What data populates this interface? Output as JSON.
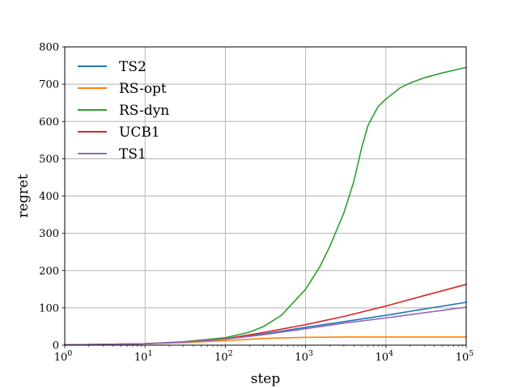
{
  "chart_data": {
    "type": "line",
    "title": "",
    "xlabel": "step",
    "ylabel": "regret",
    "xscale": "log",
    "xlim": [
      1,
      100000
    ],
    "ylim": [
      0,
      800
    ],
    "grid": true,
    "legend_position": "top-left",
    "x_ticks": [
      {
        "value": 1,
        "base": "10",
        "exp": "0"
      },
      {
        "value": 10,
        "base": "10",
        "exp": "1"
      },
      {
        "value": 100,
        "base": "10",
        "exp": "2"
      },
      {
        "value": 1000,
        "base": "10",
        "exp": "3"
      },
      {
        "value": 10000,
        "base": "10",
        "exp": "4"
      },
      {
        "value": 100000,
        "base": "10",
        "exp": "5"
      }
    ],
    "y_ticks": [
      {
        "value": 0,
        "label": "0"
      },
      {
        "value": 100,
        "label": "100"
      },
      {
        "value": 200,
        "label": "200"
      },
      {
        "value": 300,
        "label": "300"
      },
      {
        "value": 400,
        "label": "400"
      },
      {
        "value": 500,
        "label": "500"
      },
      {
        "value": 600,
        "label": "600"
      },
      {
        "value": 700,
        "label": "700"
      },
      {
        "value": 800,
        "label": "800"
      }
    ],
    "series": [
      {
        "name": "TS2",
        "color": "#1f77b4",
        "x": [
          1,
          3,
          10,
          30,
          100,
          300,
          1000,
          3000,
          10000,
          30000,
          100000
        ],
        "y": [
          1,
          2,
          4,
          8,
          16,
          30,
          48,
          63,
          80,
          97,
          115
        ]
      },
      {
        "name": "RS-opt",
        "color": "#ff7f0e",
        "x": [
          1,
          3,
          10,
          30,
          100,
          300,
          1000,
          3000,
          10000,
          30000,
          100000
        ],
        "y": [
          1,
          2,
          4,
          7,
          12,
          18,
          21,
          22,
          22,
          22,
          22
        ]
      },
      {
        "name": "RS-dyn",
        "color": "#2ca02c",
        "x": [
          1,
          3,
          10,
          30,
          100,
          200,
          300,
          500,
          1000,
          1500,
          2000,
          3000,
          4000,
          5000,
          6000,
          8000,
          10000,
          15000,
          20000,
          30000,
          50000,
          100000
        ],
        "y": [
          1,
          2,
          4,
          9,
          20,
          35,
          50,
          80,
          150,
          210,
          265,
          355,
          440,
          530,
          590,
          640,
          660,
          690,
          703,
          717,
          730,
          745
        ]
      },
      {
        "name": "UCB1",
        "color": "#d62728",
        "x": [
          1,
          3,
          10,
          30,
          100,
          300,
          1000,
          3000,
          10000,
          30000,
          100000
        ],
        "y": [
          1,
          2,
          4,
          8,
          17,
          34,
          55,
          77,
          105,
          133,
          163
        ]
      },
      {
        "name": "TS1",
        "color": "#9467bd",
        "x": [
          1,
          3,
          10,
          30,
          100,
          300,
          1000,
          3000,
          10000,
          30000,
          100000
        ],
        "y": [
          1,
          2,
          4,
          8,
          16,
          28,
          44,
          59,
          73,
          87,
          102
        ]
      }
    ]
  }
}
